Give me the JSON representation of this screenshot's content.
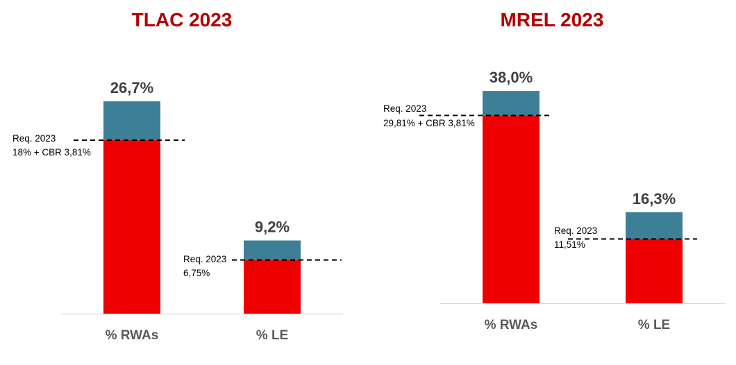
{
  "colors": {
    "title": "#b30000",
    "base": "#ee0000",
    "top": "#3d7f96",
    "axis": "#d9d9d9",
    "value_text": "#404040",
    "category_text": "#595959",
    "requirement_line": "#000000"
  },
  "chart_data": [
    {
      "type": "bar",
      "title": "TLAC 2023",
      "categories": [
        "% RWAs",
        "% LE"
      ],
      "values": [
        26.7,
        9.2
      ],
      "value_labels": [
        "26,7%",
        "9,2%"
      ],
      "stacked_components": {
        "below_requirement": [
          21.81,
          6.75
        ],
        "above_requirement_color": "#3d7f96",
        "below_requirement_color": "#ee0000"
      },
      "requirements": [
        {
          "category": "% RWAs",
          "value": 21.81,
          "label_line1": "Req. 2023",
          "label_line2": "18% + CBR 3,81%"
        },
        {
          "category": "% LE",
          "value": 6.75,
          "label_line1": "Req. 2023",
          "label_line2": "6,75%"
        }
      ],
      "xlabel": "",
      "ylabel": "",
      "ylim": [
        0,
        30
      ],
      "grid": false,
      "legend": "none"
    },
    {
      "type": "bar",
      "title": "MREL 2023",
      "categories": [
        "% RWAs",
        "% LE"
      ],
      "values": [
        38.0,
        16.3
      ],
      "value_labels": [
        "38,0%",
        "16,3%"
      ],
      "stacked_components": {
        "below_requirement": [
          33.62,
          11.51
        ],
        "above_requirement_color": "#3d7f96",
        "below_requirement_color": "#ee0000"
      },
      "requirements": [
        {
          "category": "% RWAs",
          "value": 33.62,
          "label_line1": "Req. 2023",
          "label_line2": "29,81% + CBR 3,81%"
        },
        {
          "category": "% LE",
          "value": 11.51,
          "label_line1": "Req. 2023",
          "label_line2": "11,51%"
        }
      ],
      "xlabel": "",
      "ylabel": "",
      "ylim": [
        0,
        40
      ],
      "grid": false,
      "legend": "none"
    }
  ]
}
